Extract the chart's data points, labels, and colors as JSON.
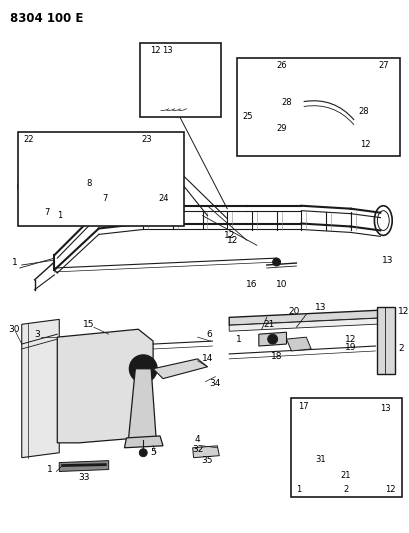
{
  "title": "8304 100 E",
  "bg_color": "#ffffff",
  "line_color": "#1a1a1a",
  "fig_width": 4.1,
  "fig_height": 5.33,
  "dpi": 100,
  "gray": "#888888",
  "darkgray": "#444444"
}
